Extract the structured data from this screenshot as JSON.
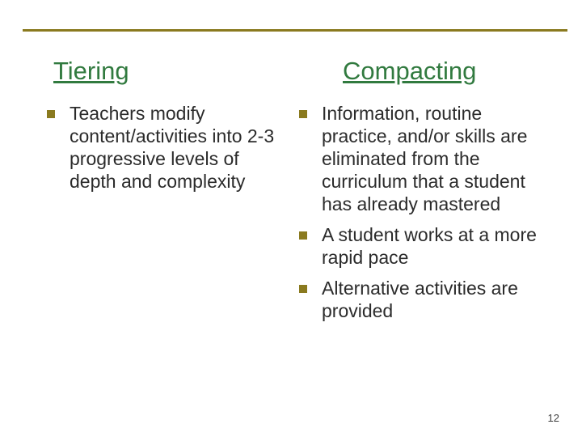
{
  "top_rule_color": "#8a7a1f",
  "bullet_color": "#8a7a1f",
  "heading_color": "#317a3f",
  "left": {
    "heading": "Tiering",
    "items": [
      "Teachers modify content/activities into 2-3 progressive levels of depth and complexity"
    ]
  },
  "right": {
    "heading": "Compacting",
    "items": [
      "Information, routine practice, and/or skills are eliminated from the curriculum that a student has already mastered",
      "A student works at a more rapid pace",
      "Alternative activities are provided"
    ]
  },
  "page_number": "12"
}
